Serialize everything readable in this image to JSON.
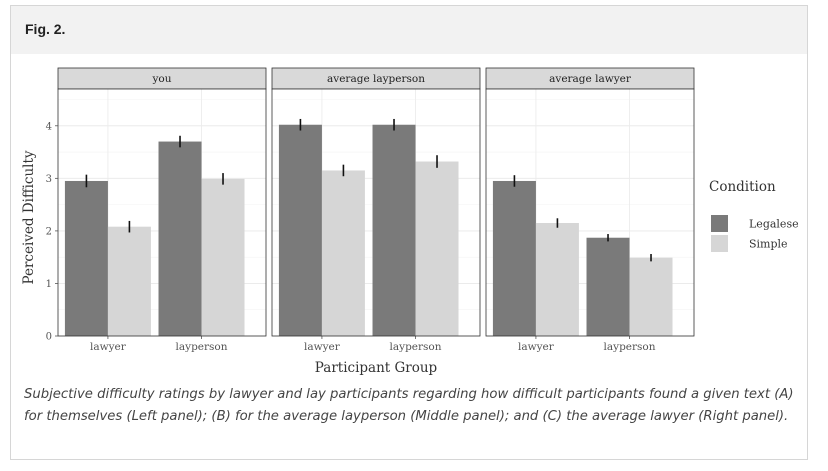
{
  "figure": {
    "label": "Fig. 2.",
    "caption": "Subjective difficulty ratings by lawyer and lay participants regarding how difficult participants found a given text (A) for themselves (Left panel); (B) for the average layperson (Middle panel); and (C) the average lawyer (Right panel)."
  },
  "chart_data": {
    "type": "bar",
    "xlabel": "Participant Group",
    "ylabel": "Perceived Difficulty",
    "ylim": [
      0,
      4.7
    ],
    "yticks": [
      0,
      1,
      2,
      3,
      4
    ],
    "categories": [
      "lawyer",
      "layperson"
    ],
    "legend": {
      "title": "Condition",
      "placement": "right",
      "entries": [
        {
          "name": "Legalese",
          "color": "#7a7a7a"
        },
        {
          "name": "Simple",
          "color": "#d6d6d6"
        }
      ]
    },
    "grid": true,
    "panels": [
      {
        "title": "you",
        "series": [
          {
            "name": "Legalese",
            "values": [
              2.95,
              3.7
            ],
            "errors": [
              0.12,
              0.11
            ]
          },
          {
            "name": "Simple",
            "values": [
              2.08,
              2.99
            ],
            "errors": [
              0.11,
              0.11
            ]
          }
        ]
      },
      {
        "title": "average layperson",
        "series": [
          {
            "name": "Legalese",
            "values": [
              4.02,
              4.02
            ],
            "errors": [
              0.11,
              0.11
            ]
          },
          {
            "name": "Simple",
            "values": [
              3.15,
              3.32
            ],
            "errors": [
              0.11,
              0.12
            ]
          }
        ]
      },
      {
        "title": "average lawyer",
        "series": [
          {
            "name": "Legalese",
            "values": [
              2.95,
              1.87
            ],
            "errors": [
              0.11,
              0.07
            ]
          },
          {
            "name": "Simple",
            "values": [
              2.15,
              1.49
            ],
            "errors": [
              0.09,
              0.07
            ]
          }
        ]
      }
    ]
  }
}
